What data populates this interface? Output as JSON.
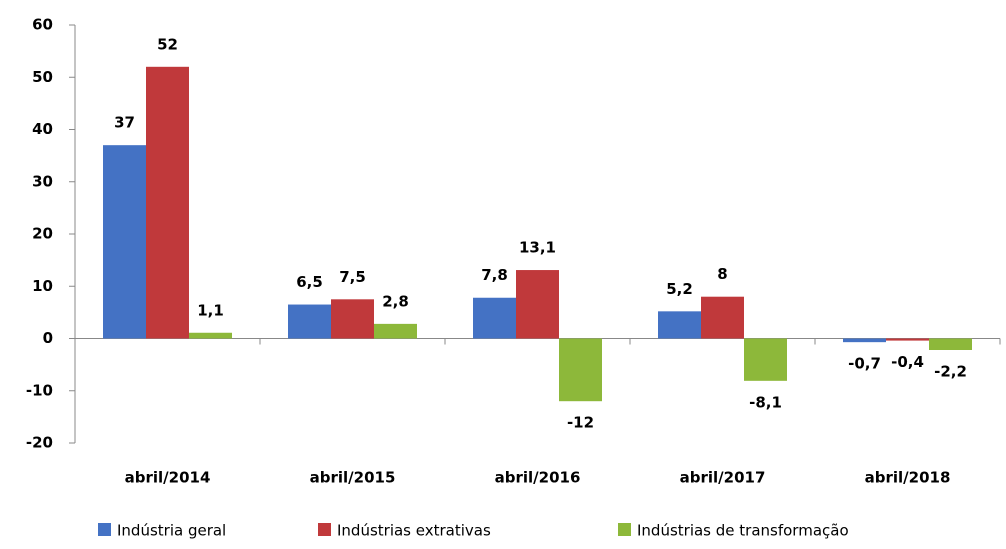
{
  "chart_data": {
    "type": "bar",
    "categories": [
      "abril/2014",
      "abril/2015",
      "abril/2016",
      "abril/2017",
      "abril/2018"
    ],
    "series": [
      {
        "name": "Indústria geral",
        "color": "#4472c4",
        "values": [
          37,
          6.5,
          7.8,
          5.2,
          -0.7
        ],
        "value_labels": [
          "37",
          "6,5",
          "7,8",
          "5,2",
          "-0,7"
        ]
      },
      {
        "name": "Indústrias extrativas",
        "color": "#c0393b",
        "values": [
          52,
          7.5,
          13.1,
          8,
          -0.4
        ],
        "value_labels": [
          "52",
          "7,5",
          "13,1",
          "8",
          "-0,4"
        ]
      },
      {
        "name": "Indústrias de transformação",
        "color": "#8db83a",
        "values": [
          1.1,
          2.8,
          -12,
          -8.1,
          -2.2
        ],
        "value_labels": [
          "1,1",
          "2,8",
          "-12",
          "-8,1",
          "-2,2"
        ]
      }
    ],
    "ylim": [
      -20,
      60
    ],
    "yticks": [
      -20,
      -10,
      0,
      10,
      20,
      30,
      40,
      50,
      60
    ],
    "grid": false,
    "legend": "bottom"
  }
}
